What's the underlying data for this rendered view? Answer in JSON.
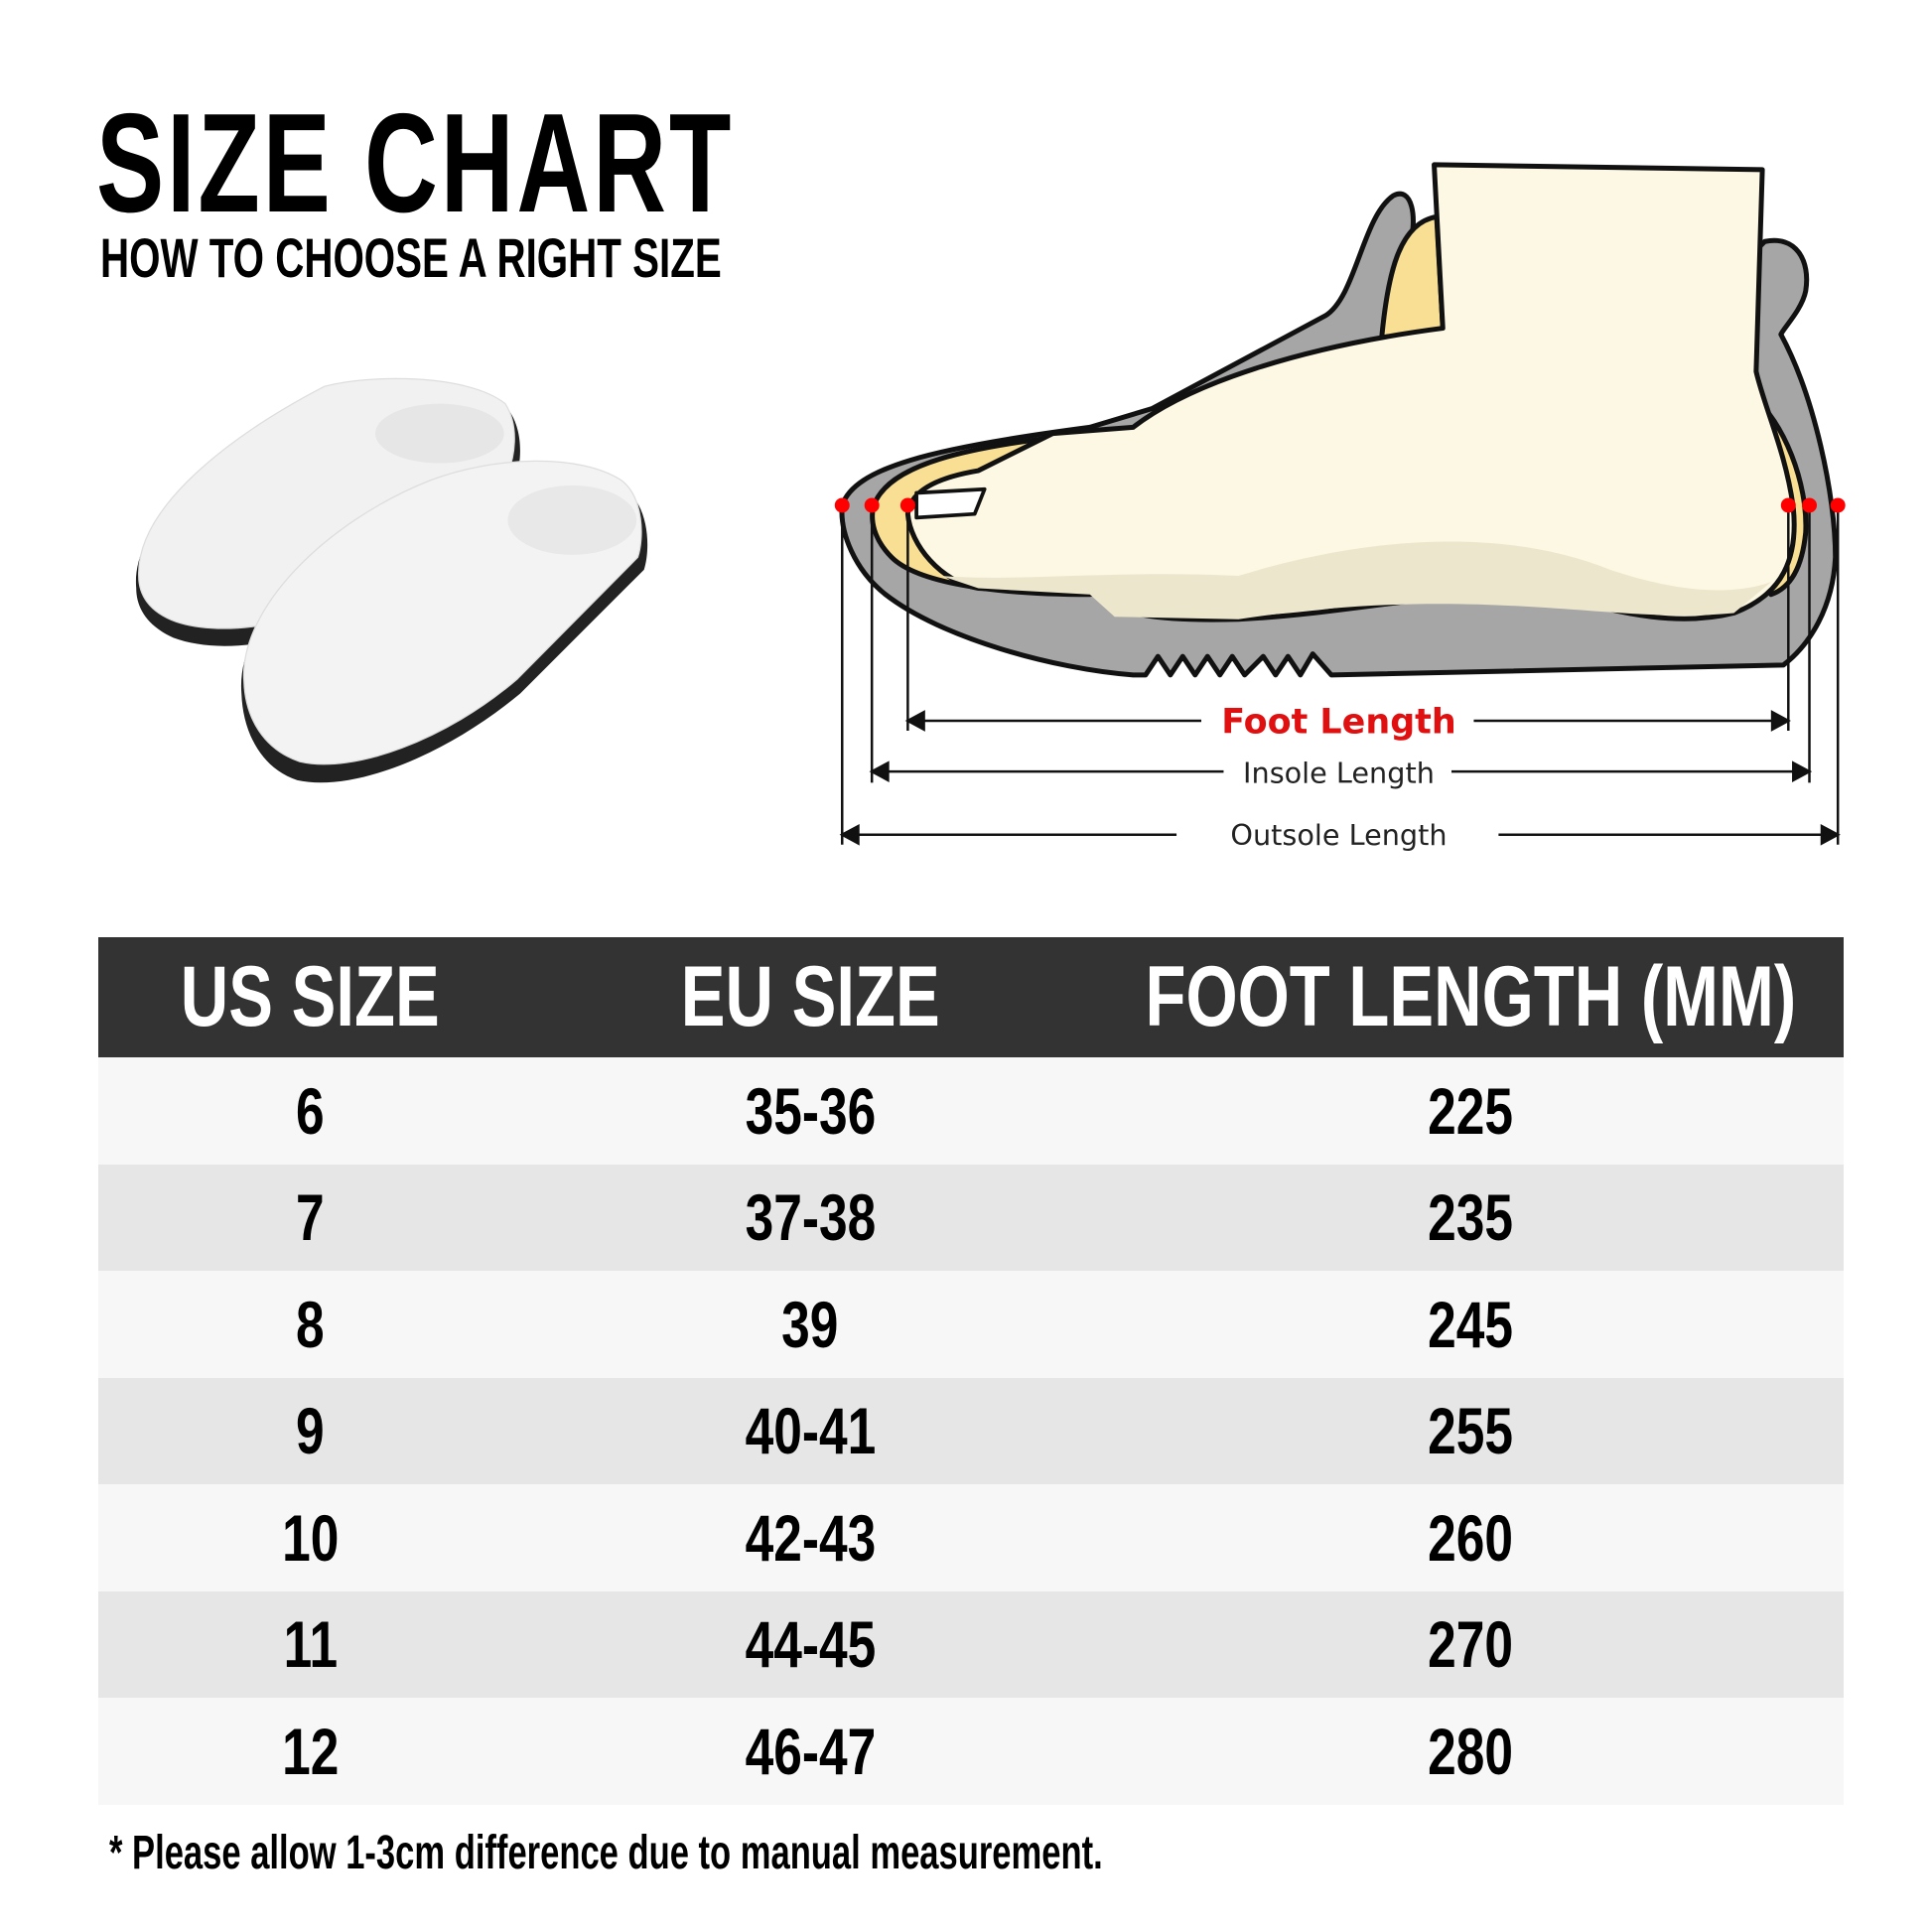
{
  "header": {
    "title": "SIZE CHART",
    "subtitle": "HOW TO CHOOSE A RIGHT SIZE"
  },
  "diagram": {
    "foot_length_label": "Foot Length",
    "insole_length_label": "Insole Length",
    "outsole_length_label": "Outsole Length",
    "colors": {
      "accent_red": "#e01010",
      "shoe_gray": "#a6a6a6",
      "insole_yellow": "#f8df93",
      "foot_cream": "#fdf8e3"
    }
  },
  "table": {
    "columns": [
      "US SIZE",
      "EU SIZE",
      "FOOT LENGTH (MM)"
    ],
    "rows": [
      [
        "6",
        "35-36",
        "225"
      ],
      [
        "7",
        "37-38",
        "235"
      ],
      [
        "8",
        "39",
        "245"
      ],
      [
        "9",
        "40-41",
        "255"
      ],
      [
        "10",
        "42-43",
        "260"
      ],
      [
        "11",
        "44-45",
        "270"
      ],
      [
        "12",
        "46-47",
        "280"
      ]
    ],
    "header_color": "#333333"
  },
  "footnote": "* Please allow 1-3cm difference due to manual measurement."
}
